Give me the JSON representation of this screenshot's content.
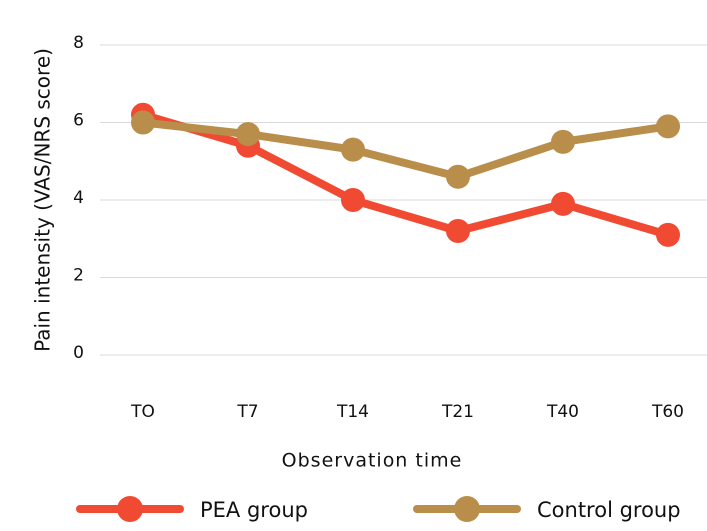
{
  "chart_data": {
    "type": "line",
    "categories": [
      "TO",
      "T7",
      "T14",
      "T21",
      "T40",
      "T60"
    ],
    "series": [
      {
        "name": "PEA group",
        "color": "#f04a32",
        "values": [
          6.2,
          5.4,
          4.0,
          3.2,
          3.9,
          3.1
        ]
      },
      {
        "name": "Control group",
        "color": "#b98d4a",
        "values": [
          6.0,
          5.7,
          5.3,
          4.6,
          5.5,
          5.9
        ]
      }
    ],
    "ylabel": "Pain intensity (VAS/NRS score)",
    "xlabel": "Observation time",
    "ylim": [
      0,
      8
    ],
    "yticks": [
      0,
      2,
      4,
      6,
      8
    ],
    "grid": true,
    "legend": "bottom"
  }
}
